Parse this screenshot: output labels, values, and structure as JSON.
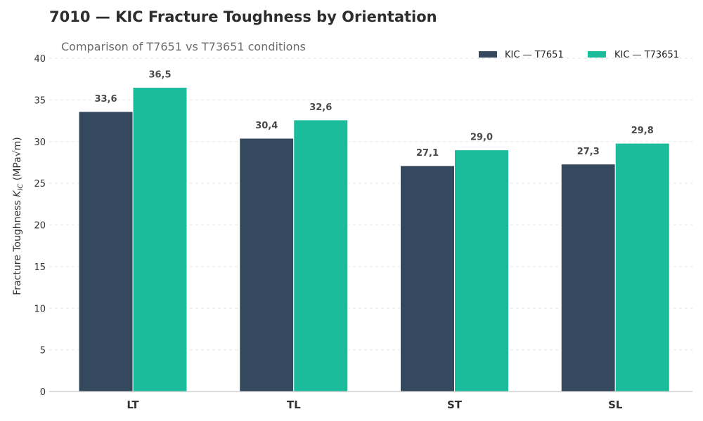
{
  "chart_data": {
    "type": "bar",
    "title": "7010 — KIC Fracture Toughness by Orientation",
    "subtitle": "Comparison of T7651 vs T73651 conditions",
    "xlabel": "",
    "ylabel_prefix": "Fracture Toughness ",
    "ylabel_symbol": "K",
    "ylabel_subscript": "IC",
    "ylabel_unit": " (MPa√m)",
    "categories": [
      "LT",
      "TL",
      "ST",
      "SL"
    ],
    "ylim": [
      0,
      40
    ],
    "yticks": [
      0,
      5,
      10,
      15,
      20,
      25,
      30,
      35,
      40
    ],
    "grid": true,
    "legend_position": "top-right",
    "series": [
      {
        "name": "KIC — T7651",
        "color": "#34495e",
        "values": [
          33.6,
          30.4,
          27.1,
          27.3
        ],
        "labels": [
          "33,6",
          "30,4",
          "27,1",
          "27,3"
        ]
      },
      {
        "name": "KIC — T73651",
        "color": "#1abc9c",
        "values": [
          36.5,
          32.6,
          29.0,
          29.8
        ],
        "labels": [
          "36,5",
          "32,6",
          "29,0",
          "29,8"
        ]
      }
    ]
  }
}
